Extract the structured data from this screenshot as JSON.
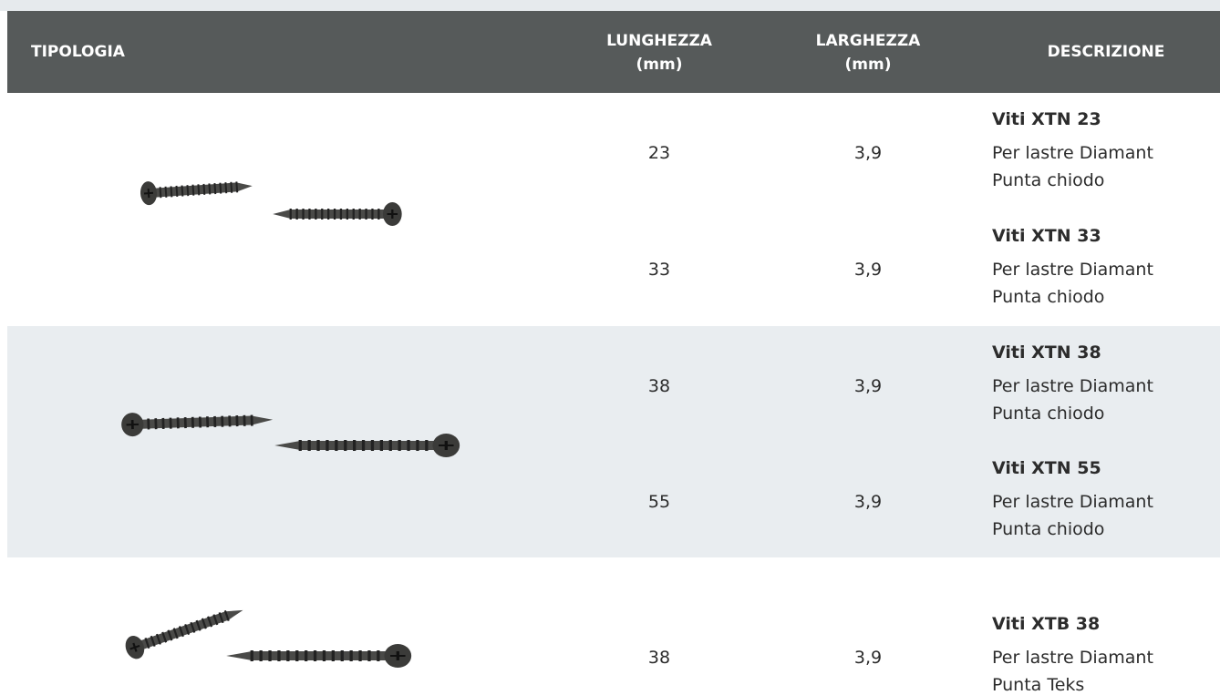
{
  "header": {
    "columns": [
      {
        "title": "TIPOLOGIA"
      },
      {
        "title": "LUNGHEZZA",
        "unit": "(mm)"
      },
      {
        "title": "LARGHEZZA",
        "unit": "(mm)"
      },
      {
        "title": "DESCRIZIONE"
      }
    ]
  },
  "groups": [
    {
      "items": [
        {
          "length": "23",
          "width": "3,9",
          "name": "Viti XTN 23",
          "lines": [
            "Per lastre Diamant",
            "Punta chiodo"
          ]
        },
        {
          "length": "33",
          "width": "3,9",
          "name": "Viti XTN 33",
          "lines": [
            "Per lastre Diamant",
            "Punta chiodo"
          ]
        }
      ]
    },
    {
      "items": [
        {
          "length": "38",
          "width": "3,9",
          "name": "Viti XTN 38",
          "lines": [
            "Per lastre Diamant",
            "Punta chiodo"
          ]
        },
        {
          "length": "55",
          "width": "3,9",
          "name": "Viti XTN 55",
          "lines": [
            "Per lastre Diamant",
            "Punta chiodo"
          ]
        }
      ]
    },
    {
      "items": [
        {
          "length": "38",
          "width": "3,9",
          "name": "Viti XTB 38",
          "lines": [
            "Per lastre Diamant",
            "Punta Teks"
          ]
        }
      ]
    }
  ]
}
